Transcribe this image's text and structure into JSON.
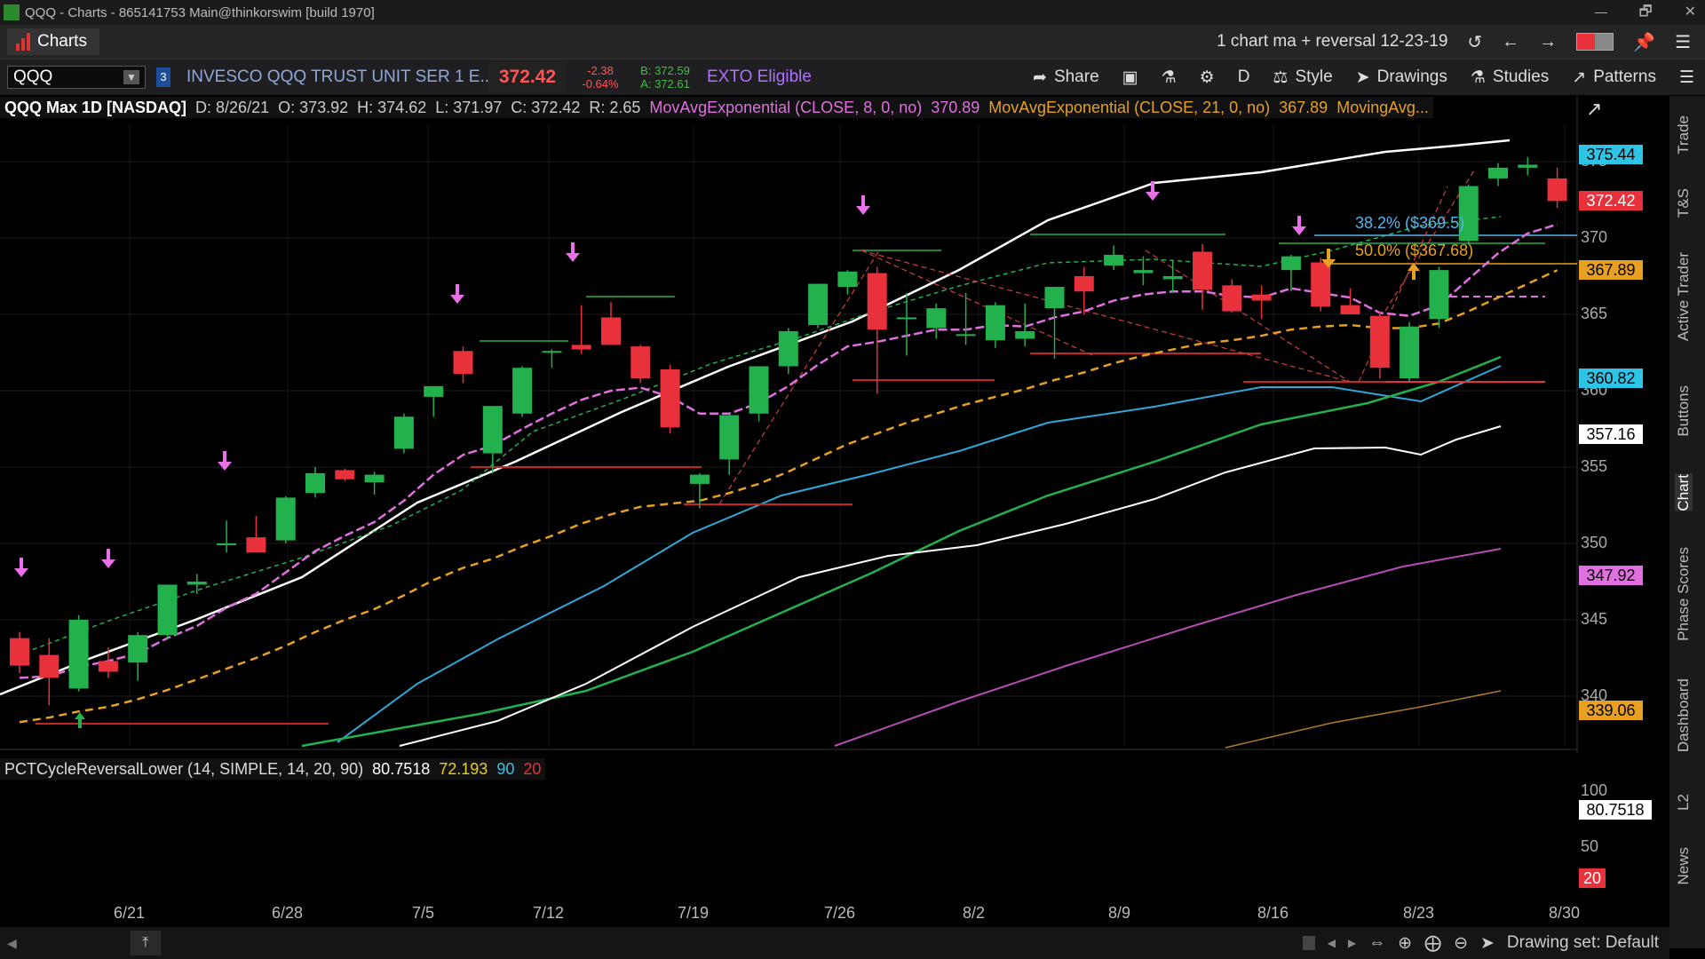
{
  "window": {
    "title": "QQQ - Charts - 865141753 Main@thinkorswim [build 1970]",
    "controls": [
      "🗗",
      "✕"
    ]
  },
  "toolbar1": {
    "tab_label": "Charts",
    "layout_name": "1 chart ma + reversal 12-23-19"
  },
  "toolbar2": {
    "symbol": "QQQ",
    "badge": "3",
    "description": "INVESCO QQQ TRUST UNIT SER 1 E...",
    "last": "372.42",
    "change": "-2.38",
    "change_pct": "-0.64%",
    "bid": "B: 372.59",
    "ask": "A: 372.61",
    "exto": "EXTO Eligible",
    "share": "Share",
    "aggregation": "D",
    "style": "Style",
    "drawings": "Drawings",
    "studies": "Studies",
    "patterns": "Patterns"
  },
  "study_header": {
    "symbol_period": "QQQ Max 1D [NASDAQ]",
    "date": "D: 8/26/21",
    "open": "O: 373.92",
    "high": "H: 374.62",
    "low": "L: 371.97",
    "close": "C: 372.42",
    "range": "R: 2.65",
    "ema8_label": "MovAvgExponential (CLOSE, 8, 0, no)",
    "ema8_value": "370.89",
    "ema21_label": "MovAvgExponential (CLOSE, 21, 0, no)",
    "ema21_value": "367.89",
    "ma_label": "MovingAvg..."
  },
  "lower_study": {
    "label": "PCTCycleReversalLower (14, SIMPLE, 14, 20, 90)",
    "value1": "80.7518",
    "value2": "72.193",
    "upper": "90",
    "lower": "20",
    "axis": [
      "100",
      "50"
    ],
    "last_box": "80.7518",
    "lower_box": "20"
  },
  "price_axis": {
    "ticks": [
      "375",
      "370",
      "365",
      "360",
      "355",
      "350",
      "345",
      "340"
    ],
    "boxes": [
      {
        "value": "375.44",
        "bg": "#2ec4e6",
        "fg": "#000000"
      },
      {
        "value": "372.42",
        "bg": "#e8313a",
        "fg": "#ffffff"
      },
      {
        "value": "367.89",
        "bg": "#e8a020",
        "fg": "#000000"
      },
      {
        "value": "360.82",
        "bg": "#2ec4e6",
        "fg": "#000000"
      },
      {
        "value": "357.16",
        "bg": "#ffffff",
        "fg": "#000000"
      },
      {
        "value": "347.92",
        "bg": "#e070e0",
        "fg": "#000000"
      },
      {
        "value": "339.06",
        "bg": "#e8a020",
        "fg": "#000000"
      }
    ]
  },
  "fib_levels": [
    {
      "label": "38.2% ($369.5)",
      "color": "#4fb8f0"
    },
    {
      "label": "50.0% ($367.68)",
      "color": "#e8a020"
    }
  ],
  "date_axis": [
    "6/21",
    "6/28",
    "7/5",
    "7/12",
    "7/19",
    "7/26",
    "8/2",
    "8/9",
    "8/16",
    "8/23",
    "8/30"
  ],
  "right_tabs": [
    "Trade",
    "T&S",
    "Active Trader",
    "Buttons",
    "Chart",
    "Phase Scores",
    "Dashboard",
    "L2",
    "News"
  ],
  "bottom": {
    "drawing_set": "Drawing set: Default"
  },
  "colors": {
    "up": "#22b14c",
    "down": "#e8313a",
    "ema8": "#e070e0",
    "ema21": "#e8a020",
    "upper_band": "#ffffff",
    "cyan_ma": "#2ea8d8",
    "green_ma": "#22b14c"
  },
  "chart_data": {
    "type": "candlestick",
    "symbol": "QQQ",
    "aggregation": "1D",
    "ylim": [
      337,
      377
    ],
    "candles": [
      {
        "o": 343.8,
        "h": 344.2,
        "l": 341.5,
        "c": 342.0
      },
      {
        "o": 342.7,
        "h": 343.8,
        "l": 339.4,
        "c": 341.2
      },
      {
        "o": 340.5,
        "h": 345.3,
        "l": 340.3,
        "c": 345.0
      },
      {
        "o": 342.3,
        "h": 343.2,
        "l": 341.2,
        "c": 341.6
      },
      {
        "o": 342.2,
        "h": 344.2,
        "l": 341.0,
        "c": 344.0
      },
      {
        "o": 344.0,
        "h": 347.3,
        "l": 343.7,
        "c": 347.3
      },
      {
        "o": 347.3,
        "h": 348.0,
        "l": 346.7,
        "c": 347.5
      },
      {
        "o": 350.0,
        "h": 351.5,
        "l": 349.4,
        "c": 350.0
      },
      {
        "o": 350.4,
        "h": 351.8,
        "l": 349.5,
        "c": 349.4
      },
      {
        "o": 350.2,
        "h": 353.1,
        "l": 350.0,
        "c": 353.0
      },
      {
        "o": 353.3,
        "h": 355.0,
        "l": 353.0,
        "c": 354.6
      },
      {
        "o": 354.8,
        "h": 354.9,
        "l": 354.1,
        "c": 354.2
      },
      {
        "o": 354.0,
        "h": 354.7,
        "l": 353.2,
        "c": 354.5
      },
      {
        "o": 356.2,
        "h": 358.5,
        "l": 355.9,
        "c": 358.3
      },
      {
        "o": 359.6,
        "h": 360.3,
        "l": 358.3,
        "c": 360.3
      },
      {
        "o": 362.6,
        "h": 362.9,
        "l": 360.5,
        "c": 361.1
      },
      {
        "o": 355.9,
        "h": 359.0,
        "l": 354.6,
        "c": 359.0
      },
      {
        "o": 358.5,
        "h": 361.6,
        "l": 358.3,
        "c": 361.5
      },
      {
        "o": 362.6,
        "h": 362.7,
        "l": 361.5,
        "c": 362.6
      },
      {
        "o": 363.0,
        "h": 365.6,
        "l": 362.4,
        "c": 362.7
      },
      {
        "o": 364.8,
        "h": 365.8,
        "l": 363.0,
        "c": 363.0
      },
      {
        "o": 362.9,
        "h": 363.0,
        "l": 360.5,
        "c": 360.8
      },
      {
        "o": 361.4,
        "h": 361.7,
        "l": 357.2,
        "c": 357.6
      },
      {
        "o": 353.9,
        "h": 354.6,
        "l": 352.3,
        "c": 354.5
      },
      {
        "o": 355.5,
        "h": 358.5,
        "l": 354.5,
        "c": 358.4
      },
      {
        "o": 358.5,
        "h": 361.6,
        "l": 358.0,
        "c": 361.6
      },
      {
        "o": 361.6,
        "h": 364.1,
        "l": 361.1,
        "c": 363.9
      },
      {
        "o": 364.3,
        "h": 367.0,
        "l": 364.1,
        "c": 367.0
      },
      {
        "o": 366.8,
        "h": 367.9,
        "l": 366.3,
        "c": 367.8
      },
      {
        "o": 367.7,
        "h": 368.1,
        "l": 359.8,
        "c": 364.0
      },
      {
        "o": 364.7,
        "h": 366.4,
        "l": 362.3,
        "c": 364.8
      },
      {
        "o": 364.1,
        "h": 365.7,
        "l": 363.4,
        "c": 365.4
      },
      {
        "o": 363.6,
        "h": 366.4,
        "l": 363.0,
        "c": 363.7
      },
      {
        "o": 363.3,
        "h": 365.8,
        "l": 362.8,
        "c": 365.6
      },
      {
        "o": 363.4,
        "h": 365.7,
        "l": 362.9,
        "c": 363.9
      },
      {
        "o": 365.4,
        "h": 366.8,
        "l": 362.1,
        "c": 366.8
      },
      {
        "o": 367.5,
        "h": 368.1,
        "l": 365.0,
        "c": 366.5
      },
      {
        "o": 368.2,
        "h": 369.5,
        "l": 367.9,
        "c": 368.9
      },
      {
        "o": 367.7,
        "h": 368.8,
        "l": 366.9,
        "c": 367.9
      },
      {
        "o": 367.3,
        "h": 368.5,
        "l": 366.4,
        "c": 367.5
      },
      {
        "o": 369.1,
        "h": 369.6,
        "l": 365.3,
        "c": 366.6
      },
      {
        "o": 366.9,
        "h": 367.3,
        "l": 365.1,
        "c": 365.2
      },
      {
        "o": 366.3,
        "h": 366.9,
        "l": 364.7,
        "c": 365.9
      },
      {
        "o": 367.9,
        "h": 368.9,
        "l": 366.5,
        "c": 368.8
      },
      {
        "o": 368.4,
        "h": 368.7,
        "l": 365.2,
        "c": 365.5
      },
      {
        "o": 365.6,
        "h": 366.7,
        "l": 365.0,
        "c": 365.0
      },
      {
        "o": 364.9,
        "h": 365.2,
        "l": 360.8,
        "c": 361.5
      },
      {
        "o": 360.8,
        "h": 364.5,
        "l": 360.6,
        "c": 364.2
      },
      {
        "o": 364.7,
        "h": 368.1,
        "l": 364.1,
        "c": 367.9
      },
      {
        "o": 369.8,
        "h": 373.5,
        "l": 369.6,
        "c": 373.4
      },
      {
        "o": 373.9,
        "h": 374.9,
        "l": 373.4,
        "c": 374.6
      },
      {
        "o": 374.6,
        "h": 375.3,
        "l": 374.1,
        "c": 374.8
      },
      {
        "o": 373.9,
        "h": 374.6,
        "l": 371.97,
        "c": 372.42
      }
    ],
    "series": [
      {
        "name": "MovAvgExponential (CLOSE, 8, 0, no)",
        "values": [
          341.2,
          341.3,
          341.9,
          342.3,
          342.8,
          343.8,
          344.6,
          345.8,
          346.7,
          348.1,
          349.5,
          350.5,
          351.4,
          352.8,
          354.5,
          355.8,
          356.4,
          357.5,
          358.5,
          359.4,
          360.0,
          360.2,
          359.6,
          358.5,
          358.5,
          359.2,
          360.3,
          361.7,
          362.9,
          363.2,
          363.6,
          364.0,
          364.0,
          364.3,
          364.2,
          364.8,
          365.2,
          365.9,
          366.3,
          366.5,
          366.5,
          366.2,
          366.1,
          366.7,
          366.4,
          366.1,
          365.1,
          364.9,
          365.6,
          367.3,
          369.0,
          370.3,
          370.89
        ]
      },
      {
        "name": "MovAvgExponential (CLOSE, 21, 0, no)",
        "values": [
          338.3,
          338.6,
          339.0,
          339.3,
          339.8,
          340.4,
          341.1,
          341.8,
          342.5,
          343.3,
          344.2,
          345.0,
          345.7,
          346.6,
          347.6,
          348.4,
          349.0,
          349.8,
          350.5,
          351.3,
          351.9,
          352.4,
          352.6,
          352.8,
          353.3,
          353.9,
          354.7,
          355.6,
          356.5,
          357.2,
          357.9,
          358.5,
          359.1,
          359.6,
          360.1,
          360.7,
          361.2,
          361.8,
          362.3,
          362.7,
          363.1,
          363.3,
          363.6,
          364.0,
          364.2,
          364.3,
          364.1,
          364.1,
          364.4,
          365.2,
          366.1,
          367.0,
          367.89
        ]
      }
    ]
  }
}
